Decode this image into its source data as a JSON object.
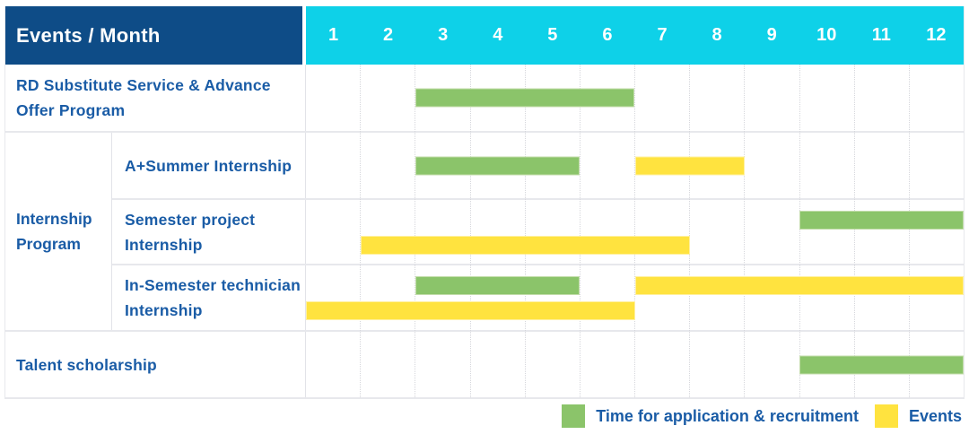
{
  "colors": {
    "navy": "#0e4c87",
    "cyan": "#0ed1e8",
    "green": "#8bc46a",
    "green_border": "#c3ddab",
    "yellow": "#ffe33f",
    "yellow_border": "#fff0a0",
    "text_blue": "#1a5ca6",
    "row_line": "#e7e8ec",
    "col_line": "#e2e3e8",
    "grid_dot": "#d6d7dc"
  },
  "header": {
    "title": "Events / Month",
    "months": [
      "1",
      "2",
      "3",
      "4",
      "5",
      "6",
      "7",
      "8",
      "9",
      "10",
      "11",
      "12"
    ]
  },
  "chart_data": {
    "type": "gantt",
    "x_axis": {
      "label": "Month",
      "ticks": [
        1,
        2,
        3,
        4,
        5,
        6,
        7,
        8,
        9,
        10,
        11,
        12
      ],
      "range": [
        1,
        12
      ],
      "gridlines": "dotted-vertical"
    },
    "rows": [
      {
        "label": "RD Substitute Service & Advance Offer Program",
        "group": null,
        "bars": [
          {
            "series": "Time for application & recruitment",
            "color": "green",
            "start": 3,
            "end": 6,
            "line": "center"
          }
        ]
      },
      {
        "label": "A+Summer Internship",
        "group": "Internship Program",
        "bars": [
          {
            "series": "Time for application & recruitment",
            "color": "green",
            "start": 3,
            "end": 5,
            "line": "center"
          },
          {
            "series": "Events",
            "color": "yellow",
            "start": 7,
            "end": 8,
            "line": "center"
          }
        ]
      },
      {
        "label": "Semester project Internship",
        "group": "Internship Program",
        "bars": [
          {
            "series": "Time for application & recruitment",
            "color": "green",
            "start": 10,
            "end": 12,
            "line": "upper"
          },
          {
            "series": "Events",
            "color": "yellow",
            "start": 2,
            "end": 7,
            "line": "lower"
          }
        ]
      },
      {
        "label": "In-Semester technician Internship",
        "group": "Internship Program",
        "bars": [
          {
            "series": "Time for application & recruitment",
            "color": "green",
            "start": 3,
            "end": 5,
            "line": "upper"
          },
          {
            "series": "Events",
            "color": "yellow",
            "start": 7,
            "end": 12,
            "line": "upper"
          },
          {
            "series": "Events",
            "color": "yellow",
            "start": 1,
            "end": 6,
            "line": "lower"
          }
        ]
      },
      {
        "label": "Talent scholarship",
        "group": null,
        "bars": [
          {
            "series": "Time for application & recruitment",
            "color": "green",
            "start": 10,
            "end": 12,
            "line": "center"
          }
        ]
      }
    ],
    "legend": [
      {
        "label": "Time for application & recruitment",
        "color": "green"
      },
      {
        "label": "Events",
        "color": "yellow"
      }
    ],
    "legend_position": "bottom-right"
  }
}
